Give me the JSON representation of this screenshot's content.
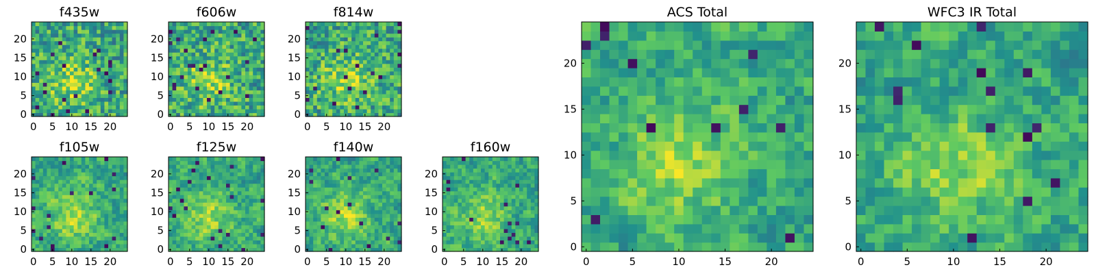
{
  "colormap": "viridis",
  "colors": {
    "viridis_stops": [
      "#440154",
      "#3b528b",
      "#21918c",
      "#5ec962",
      "#fde725"
    ],
    "frame": "#000000",
    "background": "#ffffff"
  },
  "chart_data": [
    {
      "type": "heatmap",
      "title": "f435w",
      "xticks": [
        0,
        5,
        10,
        15,
        20
      ],
      "yticks": [
        0,
        5,
        10,
        15,
        20
      ],
      "xlim": [
        0,
        25
      ],
      "ylim": [
        0,
        25
      ],
      "size": 25
    },
    {
      "type": "heatmap",
      "title": "f606w",
      "xticks": [
        0,
        5,
        10,
        15,
        20
      ],
      "yticks": [
        0,
        5,
        10,
        15,
        20
      ],
      "xlim": [
        0,
        25
      ],
      "ylim": [
        0,
        25
      ],
      "size": 25
    },
    {
      "type": "heatmap",
      "title": "f814w",
      "xticks": [
        0,
        5,
        10,
        15,
        20
      ],
      "yticks": [
        0,
        5,
        10,
        15,
        20
      ],
      "xlim": [
        0,
        25
      ],
      "ylim": [
        0,
        25
      ],
      "size": 25
    },
    {
      "type": "heatmap",
      "title": "f105w",
      "xticks": [
        0,
        5,
        10,
        15,
        20
      ],
      "yticks": [
        0,
        5,
        10,
        15,
        20
      ],
      "xlim": [
        0,
        25
      ],
      "ylim": [
        0,
        25
      ],
      "size": 25
    },
    {
      "type": "heatmap",
      "title": "f125w",
      "xticks": [
        0,
        5,
        10,
        15,
        20
      ],
      "yticks": [
        0,
        5,
        10,
        15,
        20
      ],
      "xlim": [
        0,
        25
      ],
      "ylim": [
        0,
        25
      ],
      "size": 25
    },
    {
      "type": "heatmap",
      "title": "f140w",
      "xticks": [
        0,
        5,
        10,
        15,
        20
      ],
      "yticks": [
        0,
        5,
        10,
        15,
        20
      ],
      "xlim": [
        0,
        25
      ],
      "ylim": [
        0,
        25
      ],
      "size": 25
    },
    {
      "type": "heatmap",
      "title": "f160w",
      "xticks": [
        0,
        5,
        10,
        15,
        20
      ],
      "yticks": [
        0,
        5,
        10,
        15,
        20
      ],
      "xlim": [
        0,
        25
      ],
      "ylim": [
        0,
        25
      ],
      "size": 25
    },
    {
      "type": "heatmap",
      "title": "ACS Total",
      "xticks": [
        0,
        5,
        10,
        15,
        20
      ],
      "yticks": [
        0,
        5,
        10,
        15,
        20
      ],
      "xlim": [
        0,
        25
      ],
      "ylim": [
        0,
        25
      ],
      "size": 25
    },
    {
      "type": "heatmap",
      "title": "WFC3 IR Total",
      "xticks": [
        0,
        5,
        10,
        15,
        20
      ],
      "yticks": [
        0,
        5,
        10,
        15,
        20
      ],
      "xlim": [
        0,
        25
      ],
      "ylim": [
        0,
        25
      ],
      "size": 25
    }
  ]
}
